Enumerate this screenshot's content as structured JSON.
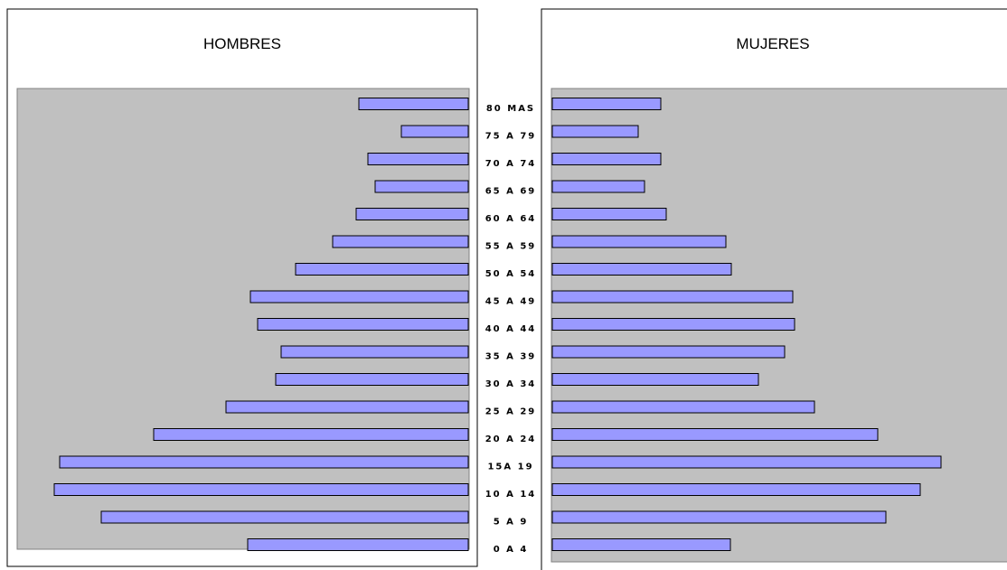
{
  "chart_data": {
    "type": "bar",
    "orientation": "horizontal",
    "layout": "population-pyramid",
    "categories": [
      "80 MAS",
      "75 A 79",
      "70 A 74",
      "65 A 69",
      "60 A 64",
      "55 A 59",
      "50 A 54",
      "45 A 49",
      "40 A 44",
      "35 A 39",
      "30 A 34",
      "25 A 29",
      "20 A 24",
      "15A 19",
      "10 A 14",
      "5 A 9",
      "0 A 4"
    ],
    "series": [
      {
        "name": "HOMBRES",
        "values": [
          121,
          74,
          111,
          103,
          124,
          150,
          191,
          241,
          233,
          207,
          213,
          268,
          348,
          452,
          458,
          406,
          244
        ]
      },
      {
        "name": "MUJERES",
        "values": [
          120,
          95,
          120,
          102,
          126,
          192,
          198,
          266,
          268,
          257,
          228,
          290,
          360,
          430,
          407,
          369,
          197
        ]
      }
    ],
    "xlim": [
      0,
      500
    ],
    "grid": false,
    "colors": {
      "bar": "#9999ff",
      "plot_bg": "#c0c0c0",
      "outline": "#000000"
    }
  }
}
